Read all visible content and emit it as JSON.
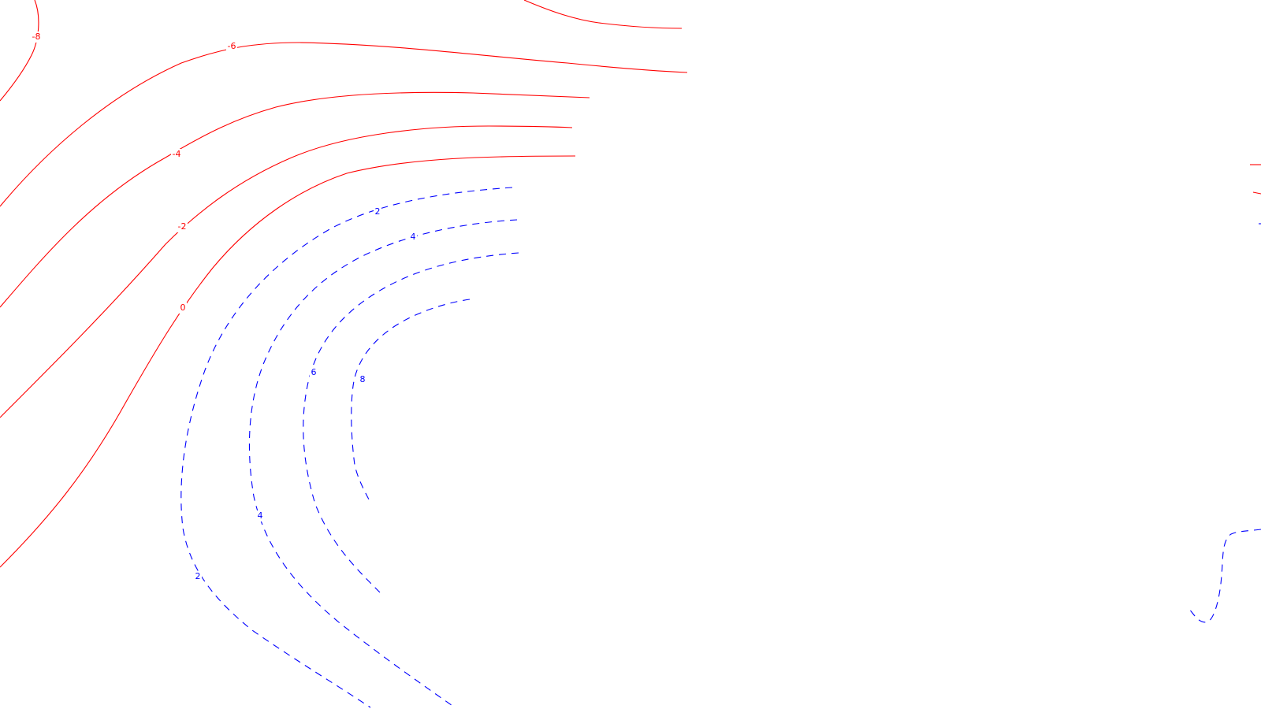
{
  "map": {
    "colors": {
      "negative": "#ff0000",
      "positive": "#0000ff",
      "background": "#ffffff"
    },
    "line_styles": {
      "negative": "solid",
      "positive": "dashed"
    },
    "contour_labels": {
      "neg8": "-8",
      "neg6": "-6",
      "neg4": "-4",
      "neg2": "-2",
      "zero": "0",
      "pos2_top": "2",
      "pos2_bottom": "2",
      "pos4_top": "4",
      "pos4_bottom": "4",
      "pos6": "6",
      "pos8": "8"
    }
  }
}
